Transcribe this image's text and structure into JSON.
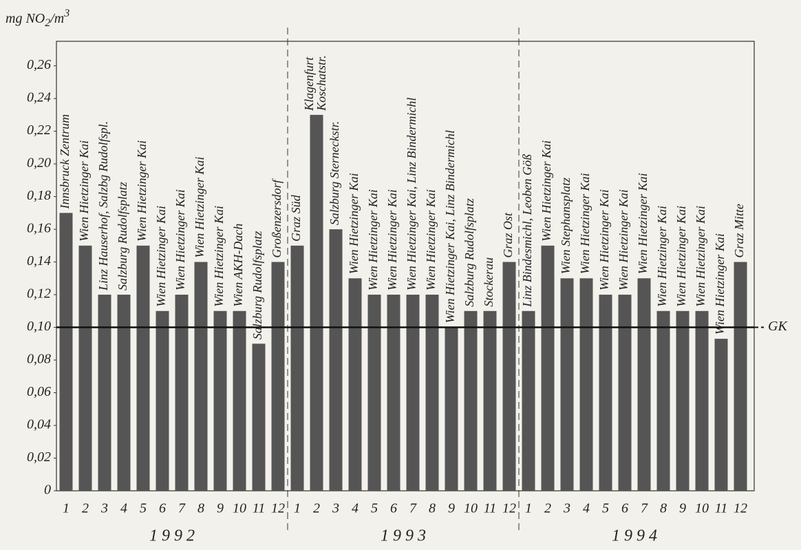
{
  "chart_data": {
    "type": "bar",
    "ylabel": [
      "mg NO",
      "2",
      "/m",
      "3"
    ],
    "categories": [
      "1",
      "2",
      "3",
      "4",
      "5",
      "6",
      "7",
      "8",
      "9",
      "10",
      "11",
      "12",
      "1",
      "2",
      "3",
      "4",
      "5",
      "6",
      "7",
      "8",
      "9",
      "10",
      "11",
      "12",
      "1",
      "2",
      "3",
      "4",
      "5",
      "6",
      "7",
      "8",
      "9",
      "10",
      "11",
      "12"
    ],
    "groups": [
      "1 9 9 2",
      "1 9 9 3",
      "1 9 9 4"
    ],
    "values": [
      0.17,
      0.15,
      0.12,
      0.12,
      0.15,
      0.11,
      0.12,
      0.14,
      0.11,
      0.11,
      0.09,
      0.14,
      0.15,
      0.23,
      0.16,
      0.13,
      0.12,
      0.12,
      0.12,
      0.12,
      0.1,
      0.11,
      0.11,
      0.14,
      0.11,
      0.15,
      0.13,
      0.13,
      0.12,
      0.12,
      0.13,
      0.11,
      0.11,
      0.11,
      0.093,
      0.14
    ],
    "bar_labels": [
      [
        "Innsbruck Zentrum"
      ],
      [
        "Wien Hietzinger Kai"
      ],
      [
        "Linz Hauserhof, Salzbg Rudolfspl."
      ],
      [
        "Salzburg Rudolfsplatz"
      ],
      [
        "Wien Hietzinger Kai"
      ],
      [
        "Wien Hietzinger Kai"
      ],
      [
        "Wien Hietzinger Kai"
      ],
      [
        "Wien Hietzinger Kai"
      ],
      [
        "Wien Hietzinger Kai"
      ],
      [
        "Wien AKH-Dach"
      ],
      [
        "Salzburg Rudolfsplatz"
      ],
      [
        "Großenzersdorf"
      ],
      [
        "Graz Süd"
      ],
      [
        "Klagenfurt",
        "Koschatstr."
      ],
      [
        "Salzburg Sterneckstr."
      ],
      [
        "Wien Hietzinger Kai"
      ],
      [
        "Wien Hietzinger Kai"
      ],
      [
        "Wien Hietzinger Kai"
      ],
      [
        "Wien Hietzinger Kai, Linz Bindermichl"
      ],
      [
        "Wien Hietzinger Kai"
      ],
      [
        "Wien Hietzinger Kai, Linz Bindermichl"
      ],
      [
        "Salzburg Rudolfsplatz"
      ],
      [
        "Stockerau"
      ],
      [
        "Graz Ost"
      ],
      [
        "Linz Bindesmichl, Leoben Göß"
      ],
      [
        "Wien Hietzinger Kai"
      ],
      [
        "Wien Stephansplatz"
      ],
      [
        "Wien Hietzinger Kai"
      ],
      [
        "Wien Hietzinger Kai"
      ],
      [
        "Wien Hietzinger Kai"
      ],
      [
        "Wien Hietzinger Kai"
      ],
      [
        "Wien Hietzinger Kai"
      ],
      [
        "Wien Hietzinger Kai"
      ],
      [
        "Wien Hietzinger Kai"
      ],
      [
        "Wien Hietzinger Kai"
      ],
      [
        "Graz Mitte"
      ]
    ],
    "color": "#555555",
    "reference_line": {
      "value": 0.1,
      "label": "GK"
    },
    "ylim": [
      0,
      0.275
    ],
    "yticks": [
      0,
      {
        "value": 0.02,
        "label": "0,02"
      },
      {
        "value": 0.04,
        "label": "0,04"
      },
      {
        "value": 0.06,
        "label": "0,06"
      },
      {
        "value": 0.08,
        "label": "0,08"
      },
      {
        "value": 0.1,
        "label": "0,10"
      },
      {
        "value": 0.12,
        "label": "0,12"
      },
      {
        "value": 0.14,
        "label": "0,14"
      },
      {
        "value": 0.16,
        "label": "0,16"
      },
      {
        "value": 0.18,
        "label": "0,18"
      },
      {
        "value": 0.2,
        "label": "0,20"
      },
      {
        "value": 0.22,
        "label": "0,22"
      },
      {
        "value": 0.24,
        "label": "0,24"
      },
      {
        "value": 0.26,
        "label": "0,26"
      }
    ]
  }
}
